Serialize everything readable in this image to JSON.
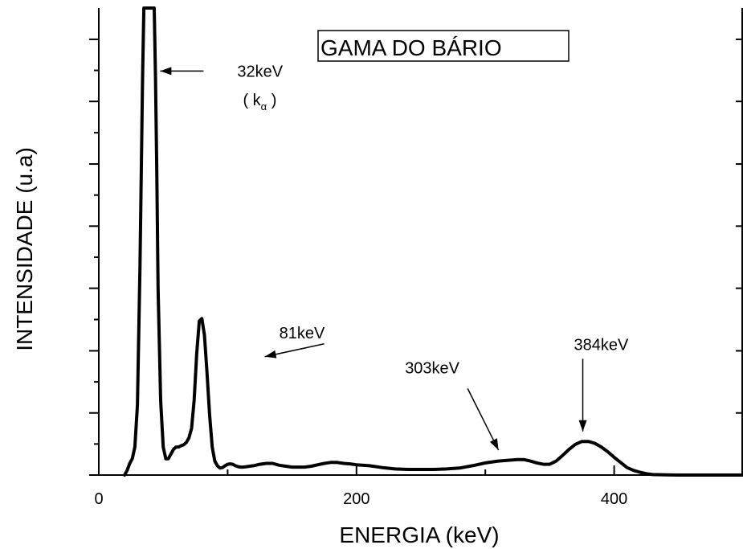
{
  "chart_data": {
    "type": "line",
    "title": "GAMA DO BÁRIO",
    "xlabel": "ENERGIA (keV)",
    "ylabel": "INTENSIDADE (u.a)",
    "xlim": [
      0,
      500
    ],
    "ylim": [
      0,
      100
    ],
    "xticks": [
      0,
      200,
      400
    ],
    "xtick_labels": [
      "0",
      "200",
      "400"
    ],
    "y_major_ticks": [
      0,
      13.3,
      26.6,
      40,
      53.3,
      66.6,
      80,
      93.3
    ],
    "grid": false,
    "legend": "none",
    "series": [
      {
        "color": "#000000",
        "x": [
          20,
          22,
          24,
          26,
          28,
          30,
          32,
          34,
          35,
          36,
          37,
          38,
          40,
          42,
          43,
          44,
          45,
          46,
          48,
          50,
          52,
          54,
          56,
          58,
          60,
          62,
          64,
          66,
          68,
          70,
          72,
          74,
          76,
          78,
          80,
          82,
          84,
          86,
          88,
          90,
          92,
          94,
          96,
          98,
          100,
          102,
          104,
          106,
          108,
          110,
          112,
          115,
          120,
          125,
          130,
          135,
          140,
          145,
          150,
          155,
          160,
          165,
          170,
          175,
          180,
          185,
          190,
          195,
          200,
          210,
          220,
          230,
          240,
          250,
          260,
          270,
          280,
          290,
          300,
          310,
          320,
          325,
          330,
          335,
          340,
          345,
          350,
          355,
          360,
          365,
          370,
          375,
          380,
          385,
          390,
          395,
          400,
          405,
          410,
          415,
          420,
          425,
          430,
          440,
          450,
          460,
          470,
          480,
          490,
          500
        ],
        "y": [
          0,
          1,
          2.5,
          3.5,
          6,
          15,
          45,
          85,
          100,
          100,
          100,
          100,
          100,
          100,
          100,
          85,
          65,
          40,
          16,
          6,
          3.5,
          3.5,
          4.5,
          5.5,
          6,
          6,
          6.3,
          6.5,
          7,
          8,
          10,
          16,
          26,
          33,
          33.5,
          30,
          22,
          13,
          6,
          3,
          2,
          1.5,
          1.6,
          2,
          2.3,
          2.4,
          2.3,
          2,
          1.8,
          1.7,
          1.7,
          1.8,
          2,
          2.3,
          2.5,
          2.5,
          2.1,
          1.9,
          1.7,
          1.7,
          1.7,
          1.9,
          2.2,
          2.5,
          2.7,
          2.7,
          2.5,
          2.4,
          2.2,
          2,
          1.6,
          1.3,
          1.2,
          1.2,
          1.2,
          1.3,
          1.5,
          2,
          2.6,
          3,
          3.2,
          3.3,
          3.3,
          3.0,
          2.6,
          2.3,
          2.3,
          3.0,
          4.2,
          5.5,
          6.6,
          7.2,
          7.2,
          6.8,
          6.0,
          5.0,
          3.8,
          2.7,
          1.6,
          1.0,
          0.6,
          0.3,
          0.1,
          0.05,
          0,
          0,
          0,
          0,
          0,
          0
        ]
      }
    ],
    "annotations": [
      {
        "text": "32keV",
        "x": 100,
        "y": 86.5,
        "target_x": 47,
        "target_y": 86.5
      },
      {
        "text": "( k",
        "sub": "α",
        "close": " )",
        "x": 115,
        "y": 80
      },
      {
        "text": "81keV",
        "x": 145,
        "y": 30.5,
        "target_x": 59,
        "target_y": 25
      },
      {
        "text": "303keV",
        "x": 300,
        "y": 23,
        "target_x": 314,
        "target_y": 5.5
      },
      {
        "text": "384keV",
        "x": 385,
        "y": 28,
        "target_x": 385,
        "target_y": 9
      }
    ]
  }
}
